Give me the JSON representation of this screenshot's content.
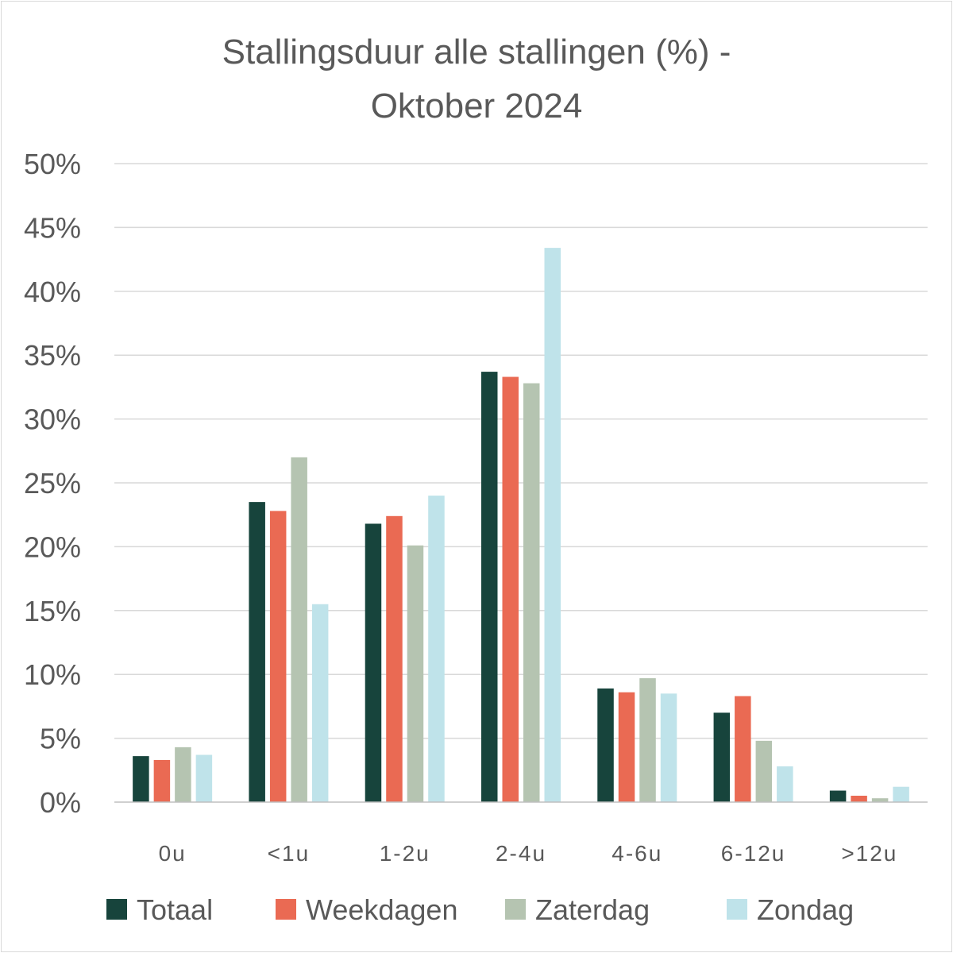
{
  "chart_data": {
    "type": "bar",
    "title_lines": [
      "Stallingsduur alle stallingen (%) -",
      "Oktober 2024"
    ],
    "categories": [
      "0u",
      "<1u",
      "1-2u",
      "2-4u",
      "4-6u",
      "6-12u",
      ">12u"
    ],
    "series": [
      {
        "name": "Totaal",
        "color": "#17443c",
        "values": [
          3.6,
          23.5,
          21.8,
          33.7,
          8.9,
          7.0,
          0.9
        ]
      },
      {
        "name": "Weekdagen",
        "color": "#ea6a53",
        "values": [
          3.3,
          22.8,
          22.4,
          33.3,
          8.6,
          8.3,
          0.5
        ]
      },
      {
        "name": "Zaterdag",
        "color": "#b5c4b1",
        "values": [
          4.3,
          27.0,
          20.1,
          32.8,
          9.7,
          4.8,
          0.3
        ]
      },
      {
        "name": "Zondag",
        "color": "#bfe3ea",
        "values": [
          3.7,
          15.5,
          24.0,
          43.4,
          8.5,
          2.8,
          1.2
        ]
      }
    ],
    "y_ticks": [
      "0%",
      "5%",
      "10%",
      "15%",
      "20%",
      "25%",
      "30%",
      "35%",
      "40%",
      "45%",
      "50%"
    ],
    "ylim": [
      0,
      50
    ],
    "grid": true,
    "legend_position": "bottom"
  }
}
